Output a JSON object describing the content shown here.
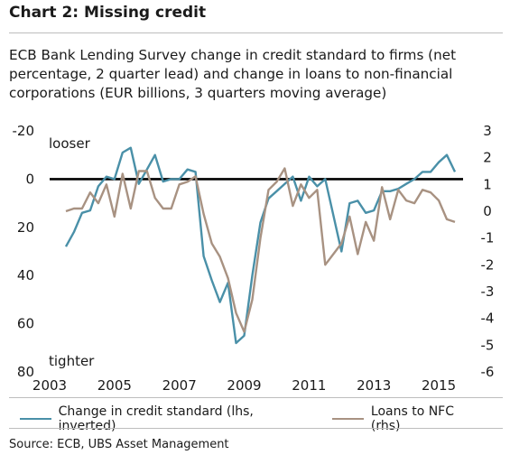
{
  "header": {
    "title": "Chart 2: Missing credit",
    "subtitle": "ECB Bank Lending Survey change in credit standard to firms (net percentage, 2 quarter lead) and change in loans to non-financial corporations (EUR billions, 3 quarters moving average)"
  },
  "source": "Source: ECB, UBS Asset Management",
  "colors": {
    "credit_standard": "#4a90a8",
    "loans": "#a89282",
    "zero_line": "#000000"
  },
  "chart_data": {
    "type": "line",
    "xlim": [
      2003,
      2015.75
    ],
    "x_ticks": [
      "2003",
      "2005",
      "2007",
      "2009",
      "2011",
      "2013",
      "2015"
    ],
    "y_left": {
      "label": "lhs, inverted",
      "ylim": [
        -20,
        80
      ],
      "inverted": true,
      "ticks": [
        "-20",
        "0",
        "20",
        "40",
        "60",
        "80"
      ]
    },
    "y_right": {
      "label": "rhs",
      "ylim": [
        -6,
        3
      ],
      "ticks": [
        "3",
        "2",
        "1",
        "0",
        "-1",
        "-2",
        "-3",
        "-4",
        "-5",
        "-6"
      ]
    },
    "annotations": {
      "top": "looser",
      "bottom": "tighter"
    },
    "series": [
      {
        "name": "Change in credit standard (lhs, inverted)",
        "axis": "left",
        "x": [
          2003.5,
          2003.75,
          2004.0,
          2004.25,
          2004.5,
          2004.75,
          2005.0,
          2005.25,
          2005.5,
          2005.75,
          2006.0,
          2006.25,
          2006.5,
          2006.75,
          2007.0,
          2007.25,
          2007.5,
          2007.75,
          2008.0,
          2008.25,
          2008.5,
          2008.75,
          2009.0,
          2009.25,
          2009.5,
          2009.75,
          2010.0,
          2010.25,
          2010.5,
          2010.75,
          2011.0,
          2011.25,
          2011.5,
          2011.75,
          2012.0,
          2012.25,
          2012.5,
          2012.75,
          2013.0,
          2013.25,
          2013.5,
          2013.75,
          2014.0,
          2014.25,
          2014.5,
          2014.75,
          2015.0,
          2015.25,
          2015.5
        ],
        "values": [
          28,
          22,
          14,
          13,
          3,
          -1,
          0,
          -11,
          -13,
          2,
          -4,
          -10,
          1,
          0,
          0,
          -4,
          -3,
          32,
          42,
          51,
          43,
          68,
          65,
          40,
          18,
          8,
          5,
          2,
          -1,
          9,
          -1,
          3,
          0,
          15,
          30,
          10,
          9,
          14,
          13,
          5,
          5,
          4,
          2,
          0,
          -3,
          -3,
          -7,
          -10,
          -3
        ]
      },
      {
        "name": "Loans to NFC (rhs)",
        "axis": "right",
        "x": [
          2003.5,
          2003.75,
          2004.0,
          2004.25,
          2004.5,
          2004.75,
          2005.0,
          2005.25,
          2005.5,
          2005.75,
          2006.0,
          2006.25,
          2006.5,
          2006.75,
          2007.0,
          2007.25,
          2007.5,
          2007.75,
          2008.0,
          2008.25,
          2008.5,
          2008.75,
          2009.0,
          2009.25,
          2009.5,
          2009.75,
          2010.0,
          2010.25,
          2010.5,
          2010.75,
          2011.0,
          2011.25,
          2011.5,
          2011.75,
          2012.0,
          2012.25,
          2012.5,
          2012.75,
          2013.0,
          2013.25,
          2013.5,
          2013.75,
          2014.0,
          2014.25,
          2014.5,
          2014.75,
          2015.0,
          2015.25,
          2015.5
        ],
        "values": [
          0.0,
          0.1,
          0.1,
          0.7,
          0.3,
          1.0,
          -0.2,
          1.4,
          0.1,
          1.5,
          1.5,
          0.5,
          0.1,
          0.1,
          1.0,
          1.1,
          1.3,
          -0.1,
          -1.2,
          -1.7,
          -2.5,
          -3.8,
          -4.5,
          -3.3,
          -1.0,
          0.8,
          1.1,
          1.6,
          0.2,
          1.0,
          0.5,
          0.8,
          -2.0,
          -1.6,
          -1.2,
          -0.2,
          -1.6,
          -0.4,
          -1.1,
          0.9,
          -0.3,
          0.8,
          0.4,
          0.3,
          0.8,
          0.7,
          0.4,
          -0.3,
          -0.4
        ]
      }
    ],
    "grid": false,
    "legend": "bottom"
  }
}
